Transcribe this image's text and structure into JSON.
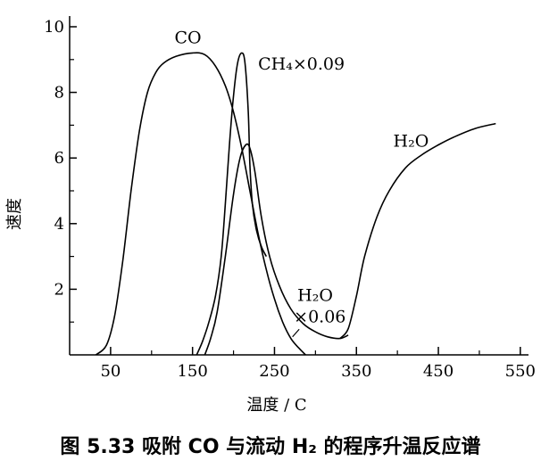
{
  "chart_data": {
    "type": "line",
    "xlabel": "温度 / C",
    "ylabel": "速度",
    "xlim": [
      0,
      560
    ],
    "ylim": [
      0,
      10
    ],
    "x_ticks": [
      50,
      150,
      250,
      350,
      450,
      550
    ],
    "y_ticks": [
      2,
      4,
      6,
      8,
      10
    ],
    "grid": false,
    "series": [
      {
        "name": "CO",
        "label": "CO",
        "color": "#000000",
        "points": [
          [
            32,
            0
          ],
          [
            45,
            0.3
          ],
          [
            55,
            1.2
          ],
          [
            65,
            2.9
          ],
          [
            75,
            5.0
          ],
          [
            85,
            6.8
          ],
          [
            95,
            8.0
          ],
          [
            105,
            8.6
          ],
          [
            115,
            8.9
          ],
          [
            130,
            9.1
          ],
          [
            150,
            9.2
          ],
          [
            165,
            9.15
          ],
          [
            178,
            8.8
          ],
          [
            190,
            8.2
          ],
          [
            200,
            7.4
          ],
          [
            210,
            6.3
          ],
          [
            220,
            5.0
          ],
          [
            230,
            3.7
          ],
          [
            240,
            2.6
          ],
          [
            250,
            1.7
          ],
          [
            260,
            1.0
          ],
          [
            270,
            0.5
          ],
          [
            280,
            0.2
          ],
          [
            288,
            0
          ]
        ]
      },
      {
        "name": "CH4",
        "label": "CH₄×0.09",
        "color": "#000000",
        "points": [
          [
            155,
            0
          ],
          [
            162,
            0.4
          ],
          [
            170,
            1.0
          ],
          [
            178,
            1.8
          ],
          [
            185,
            3.0
          ],
          [
            190,
            4.6
          ],
          [
            195,
            6.4
          ],
          [
            200,
            7.9
          ],
          [
            205,
            8.9
          ],
          [
            210,
            9.2
          ],
          [
            214,
            8.9
          ],
          [
            218,
            7.4
          ],
          [
            220,
            5.8
          ],
          [
            223,
            4.6
          ],
          [
            228,
            3.8
          ],
          [
            234,
            3.3
          ],
          [
            240,
            3.0
          ]
        ]
      },
      {
        "name": "H2O (×0.06)",
        "label": "H₂O ×0.06",
        "color": "#000000",
        "points": [
          [
            165,
            0
          ],
          [
            172,
            0.5
          ],
          [
            180,
            1.3
          ],
          [
            190,
            3.0
          ],
          [
            200,
            4.9
          ],
          [
            208,
            6.0
          ],
          [
            215,
            6.4
          ],
          [
            220,
            6.3
          ],
          [
            226,
            5.6
          ],
          [
            234,
            4.2
          ],
          [
            244,
            3.0
          ],
          [
            256,
            2.1
          ],
          [
            270,
            1.4
          ],
          [
            285,
            0.95
          ],
          [
            300,
            0.7
          ],
          [
            315,
            0.55
          ],
          [
            330,
            0.5
          ],
          [
            340,
            0.6
          ]
        ]
      },
      {
        "name": "H2O",
        "label": "H₂O",
        "color": "#000000",
        "points": [
          [
            330,
            0.5
          ],
          [
            340,
            0.8
          ],
          [
            350,
            1.8
          ],
          [
            360,
            3.0
          ],
          [
            375,
            4.2
          ],
          [
            390,
            5.0
          ],
          [
            410,
            5.7
          ],
          [
            430,
            6.1
          ],
          [
            450,
            6.4
          ],
          [
            470,
            6.65
          ],
          [
            495,
            6.9
          ],
          [
            520,
            7.05
          ]
        ]
      }
    ]
  },
  "caption": "图 5.33   吸附 CO 与流动 H₂ 的程序升温反应谱"
}
